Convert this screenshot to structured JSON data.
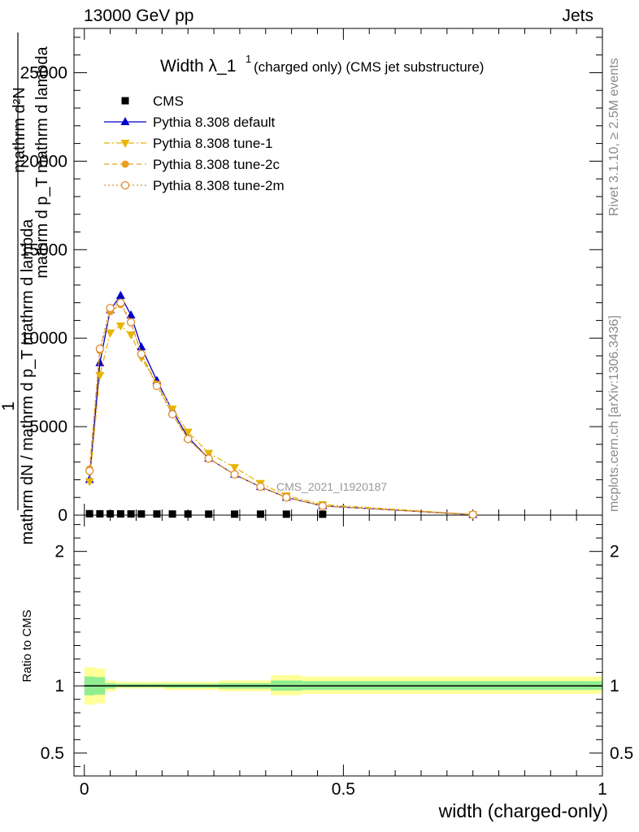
{
  "header": {
    "energy_label": "13000 GeV pp",
    "category_label": "Jets"
  },
  "side_labels": {
    "rivet": "Rivet 3.1.10, ≥ 2.5M events",
    "mcplots": "mcplots.cern.ch [arXiv:1306.3436]"
  },
  "chart_data": [
    {
      "type": "line",
      "title_main": "Width λ_1",
      "title_sup": "1",
      "title_rest": "(charged only) (CMS jet substructure)",
      "ylabel_parts": [
        "1",
        "mathrm d p_T mathrm d lambda",
        "mathrm dN / mathrm d p_T mathrm d lambda",
        "mathrm d²N"
      ],
      "ylim": [
        0,
        27500
      ],
      "xlim": [
        -0.02,
        1.0
      ],
      "yticks": [
        0,
        5000,
        10000,
        15000,
        20000,
        25000
      ],
      "ytick_labels": [
        "0",
        "5000",
        "10000",
        "15000",
        "20000",
        "25000"
      ],
      "watermark": "CMS_2021_I1920187",
      "legend_position": "top-left",
      "legend": [
        "CMS",
        "Pythia 8.308 default",
        "Pythia 8.308 tune-1",
        "Pythia 8.308 tune-2c",
        "Pythia 8.308 tune-2m"
      ],
      "series": [
        {
          "name": "CMS",
          "style": "square",
          "color": "#000000",
          "x": [
            0.01,
            0.03,
            0.05,
            0.07,
            0.09,
            0.11,
            0.14,
            0.17,
            0.2,
            0.24,
            0.29,
            0.34,
            0.39,
            0.46
          ],
          "values": [
            80,
            75,
            72,
            70,
            68,
            66,
            64,
            62,
            60,
            58,
            56,
            55,
            54,
            52
          ]
        },
        {
          "name": "Pythia 8.308 default",
          "style": "line-triangle-up",
          "color": "#0000cc",
          "x": [
            0.01,
            0.03,
            0.05,
            0.07,
            0.09,
            0.11,
            0.14,
            0.17,
            0.2,
            0.24,
            0.29,
            0.34,
            0.39,
            0.46,
            0.75
          ],
          "values": [
            2000,
            8600,
            11600,
            12400,
            11300,
            9500,
            7600,
            5900,
            4400,
            3200,
            2300,
            1600,
            1000,
            520,
            30
          ]
        },
        {
          "name": "Pythia 8.308 tune-1",
          "style": "dashdot-triangle-down",
          "color": "#e8b400",
          "x": [
            0.01,
            0.03,
            0.05,
            0.07,
            0.09,
            0.11,
            0.14,
            0.17,
            0.2,
            0.24,
            0.29,
            0.34,
            0.39,
            0.46,
            0.75
          ],
          "values": [
            1900,
            7900,
            10300,
            10700,
            10200,
            8900,
            7400,
            6000,
            4700,
            3500,
            2700,
            1800,
            1100,
            600,
            40
          ]
        },
        {
          "name": "Pythia 8.308 tune-2c",
          "style": "dashed-circle-filled",
          "color": "#e8a020",
          "x": [
            0.01,
            0.03,
            0.05,
            0.07,
            0.09,
            0.11,
            0.14,
            0.17,
            0.2,
            0.24,
            0.29,
            0.34,
            0.39,
            0.46,
            0.75
          ],
          "values": [
            2600,
            9300,
            11500,
            11900,
            10900,
            9100,
            7400,
            5700,
            4300,
            3200,
            2300,
            1600,
            1000,
            520,
            30
          ]
        },
        {
          "name": "Pythia 8.308 tune-2m",
          "style": "dotted-circle-open",
          "color": "#e08a30",
          "x": [
            0.01,
            0.03,
            0.05,
            0.07,
            0.09,
            0.11,
            0.14,
            0.17,
            0.2,
            0.24,
            0.29,
            0.34,
            0.39,
            0.46,
            0.75
          ],
          "values": [
            2500,
            9400,
            11700,
            12000,
            10900,
            9100,
            7300,
            5700,
            4300,
            3200,
            2300,
            1600,
            1000,
            520,
            30
          ]
        }
      ]
    },
    {
      "type": "area",
      "ylabel": "Ratio to CMS",
      "ylim": [
        0.33,
        2.27
      ],
      "xlim": [
        -0.02,
        1.0
      ],
      "xlabel": "width (charged-only)",
      "yticks": [
        0.5,
        1,
        2
      ],
      "ytick_labels": [
        "0.5",
        "1",
        "2"
      ],
      "xticks": [
        0,
        0.5,
        1
      ],
      "xtick_labels": [
        "0",
        "0.5",
        "1"
      ],
      "reference": 1,
      "bands": [
        {
          "name": "uncertainty-2sigma",
          "color": "#ffff99",
          "edges": [
            0.0,
            0.02,
            0.04,
            0.06,
            0.08,
            0.1,
            0.12,
            0.155,
            0.185,
            0.22,
            0.26,
            0.32,
            0.36,
            0.42,
            1.0
          ],
          "low": [
            0.86,
            0.87,
            0.96,
            0.98,
            0.98,
            0.98,
            0.98,
            0.97,
            0.97,
            0.97,
            0.96,
            0.96,
            0.93,
            0.94,
            0.94
          ],
          "high": [
            1.14,
            1.13,
            1.04,
            1.03,
            1.03,
            1.03,
            1.03,
            1.03,
            1.03,
            1.03,
            1.04,
            1.04,
            1.08,
            1.07,
            1.07
          ]
        },
        {
          "name": "uncertainty-1sigma",
          "color": "#90ee90",
          "edges": [
            0.0,
            0.02,
            0.04,
            0.06,
            0.08,
            0.1,
            0.12,
            0.155,
            0.185,
            0.22,
            0.26,
            0.32,
            0.36,
            0.42,
            1.0
          ],
          "low": [
            0.93,
            0.935,
            0.98,
            0.99,
            0.99,
            0.99,
            0.99,
            0.985,
            0.985,
            0.985,
            0.98,
            0.98,
            0.965,
            0.97,
            0.97
          ],
          "high": [
            1.07,
            1.065,
            1.02,
            1.015,
            1.015,
            1.015,
            1.015,
            1.015,
            1.015,
            1.015,
            1.02,
            1.02,
            1.04,
            1.035,
            1.035
          ]
        }
      ]
    }
  ]
}
